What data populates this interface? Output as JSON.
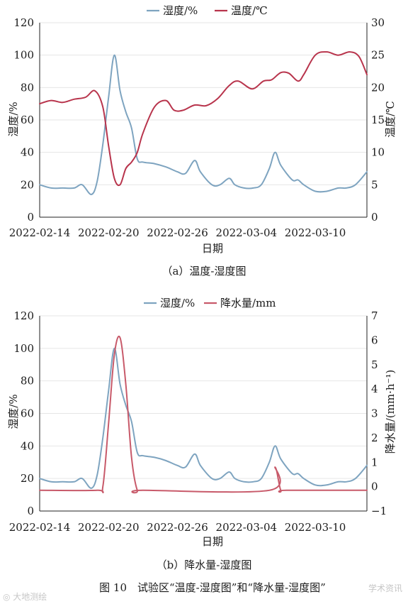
{
  "figure_caption": "图 10　试验区“温度-湿度图”和“降水量-湿度图”",
  "watermark_left": "◎ 大地测绘",
  "watermark_right": "学术资讯",
  "colors": {
    "humidity": "#7ea4c0",
    "temperature": "#b8344c",
    "precip": "#c85a6a",
    "axis": "#222222"
  },
  "chart_data": [
    {
      "type": "line",
      "subcaption": "（a）温度-湿度图",
      "xlabel": "日期",
      "ylabel_left": "湿度/%",
      "ylabel_right": "温度/℃",
      "x_tick_labels": [
        "2022-02-14",
        "2022-02-20",
        "2022-02-26",
        "2022-03-04",
        "2022-03-10"
      ],
      "x_tick_positions": [
        0,
        6,
        12,
        18,
        24
      ],
      "xlim": [
        0,
        28.5
      ],
      "ylim_left": [
        0,
        120
      ],
      "yticks_left": [
        "0",
        "20",
        "40",
        "60",
        "80",
        "100",
        "120"
      ],
      "ylim_right": [
        0,
        30
      ],
      "yticks_right": [
        "0",
        "5",
        "10",
        "15",
        "20",
        "25",
        "30"
      ],
      "grid": true,
      "legend_position": "top-center",
      "series": [
        {
          "name": "湿度/%",
          "axis": "left",
          "color": "#7ea4c0",
          "x": [
            0,
            1,
            2,
            3,
            3.7,
            4.5,
            5,
            5.5,
            6,
            6.5,
            7,
            7.5,
            8,
            8.5,
            9,
            10,
            11,
            12,
            12.7,
            13.5,
            14,
            15,
            15.7,
            16.5,
            17,
            17.8,
            18.6,
            19.3,
            20,
            20.5,
            21,
            22,
            22.5,
            23,
            24,
            25,
            26,
            26.7,
            27.5,
            28.5
          ],
          "y": [
            20,
            18,
            18,
            18,
            20,
            14,
            22,
            45,
            74,
            100,
            78,
            65,
            55,
            36,
            34,
            33,
            31,
            28,
            27,
            35,
            28,
            20,
            20,
            24,
            20,
            18,
            18,
            20,
            30,
            40,
            32,
            23,
            23,
            20,
            16,
            16,
            18,
            18,
            20,
            28
          ]
        },
        {
          "name": "温度/℃",
          "axis": "right",
          "color": "#b8344c",
          "x": [
            0,
            1,
            2,
            3,
            4,
            4.8,
            5.5,
            6,
            6.5,
            7,
            7.5,
            8,
            8.5,
            9,
            10,
            11,
            11.7,
            12.5,
            13.5,
            14.5,
            15.5,
            16.5,
            17.3,
            18.5,
            19.5,
            20.2,
            21,
            21.7,
            22.5,
            23,
            24,
            25,
            26,
            27,
            27.8,
            28.5
          ],
          "y": [
            17.5,
            18,
            17.7,
            18.2,
            18.5,
            19.5,
            17,
            11,
            6,
            5,
            7.5,
            8.5,
            10,
            13,
            17,
            18,
            16.5,
            16.5,
            17.3,
            17.2,
            18.3,
            20.3,
            21,
            19.8,
            21,
            21.2,
            22.3,
            22.2,
            21,
            22,
            25,
            25.5,
            25,
            25.5,
            24.8,
            22
          ]
        }
      ]
    },
    {
      "type": "line",
      "subcaption": "（b）降水量-湿度图",
      "xlabel": "日期",
      "ylabel_left": "湿度/%",
      "ylabel_right": "降水量/(mm·h⁻¹)",
      "x_tick_labels": [
        "2022-02-14",
        "2022-02-20",
        "2022-02-26",
        "2022-03-04",
        "2022-03-10"
      ],
      "x_tick_positions": [
        0,
        6,
        12,
        18,
        24
      ],
      "xlim": [
        0,
        28.5
      ],
      "ylim_left": [
        0,
        120
      ],
      "yticks_left": [
        "0",
        "20",
        "40",
        "60",
        "80",
        "100",
        "120"
      ],
      "ylim_right": [
        -1,
        7
      ],
      "yticks_right": [
        "−1",
        "0",
        "1",
        "2",
        "3",
        "4",
        "5",
        "6",
        "7"
      ],
      "grid": true,
      "legend_position": "top-center",
      "series": [
        {
          "name": "湿度/%",
          "axis": "left",
          "color": "#7ea4c0",
          "x": [
            0,
            1,
            2,
            3,
            3.7,
            4.5,
            5,
            5.5,
            6,
            6.5,
            7,
            7.5,
            8,
            8.5,
            9,
            10,
            11,
            12,
            12.7,
            13.5,
            14,
            15,
            15.7,
            16.5,
            17,
            17.8,
            18.6,
            19.3,
            20,
            20.5,
            21,
            22,
            22.5,
            23,
            24,
            25,
            26,
            26.7,
            27.5,
            28.5
          ],
          "y": [
            20,
            18,
            18,
            18,
            20,
            14,
            22,
            45,
            74,
            100,
            78,
            65,
            55,
            36,
            34,
            33,
            31,
            28,
            27,
            35,
            28,
            20,
            20,
            24,
            20,
            18,
            18,
            20,
            30,
            40,
            32,
            23,
            23,
            20,
            16,
            16,
            18,
            18,
            20,
            28
          ]
        },
        {
          "name": "降水量/mm",
          "axis": "right",
          "color": "#c85a6a",
          "x": [
            0,
            5,
            5.5,
            6,
            6.5,
            7,
            7.5,
            8,
            8.5,
            9,
            20,
            20.5,
            21,
            21.5,
            28.5
          ],
          "y": [
            -0.15,
            -0.15,
            0,
            2.6,
            5.4,
            6.1,
            4.2,
            1.2,
            -0.15,
            -0.15,
            -0.15,
            0.8,
            -0.15,
            -0.15,
            -0.15
          ]
        }
      ]
    }
  ]
}
